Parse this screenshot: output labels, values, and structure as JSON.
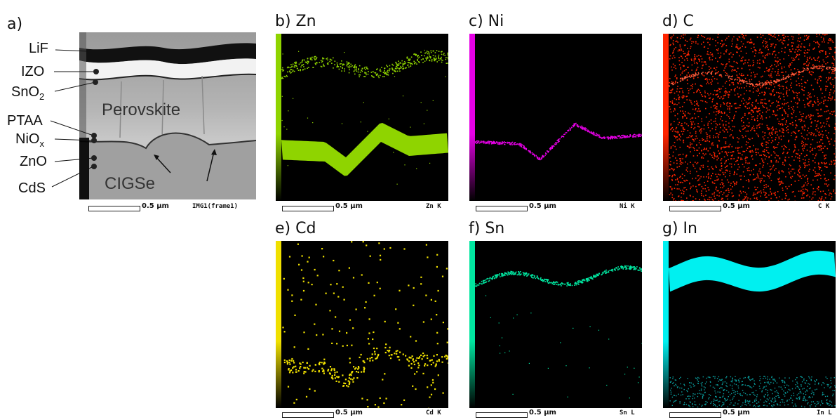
{
  "panels": {
    "a": {
      "label": "a)"
    },
    "b": {
      "label": "b) Zn",
      "element": "Zn K",
      "color": "#8fd400"
    },
    "c": {
      "label": "c) Ni",
      "element": "Ni K",
      "color": "#e600e6"
    },
    "d": {
      "label": "d) C",
      "element": "C K",
      "color": "#ff2400"
    },
    "e": {
      "label": "e) Cd",
      "element": "Cd K",
      "color": "#f0e000"
    },
    "f": {
      "label": "f) Sn",
      "element": "Sn L",
      "color": "#00e6a0"
    },
    "g": {
      "label": "g) In",
      "element": "In L",
      "color": "#00f0f0"
    }
  },
  "scale_bar": "0.5 μm",
  "sem": {
    "frame_label": "IMG1(frame1)",
    "perovskite": "Perovskite",
    "cigse": "CIGSe",
    "layers": {
      "lif": "LiF",
      "izo": "IZO",
      "sno2": "SnO",
      "sno2_sub": "2",
      "ptaa": "PTAA",
      "niox": "NiO",
      "niox_sub": "x",
      "zno": "ZnO",
      "cds": "CdS"
    }
  }
}
